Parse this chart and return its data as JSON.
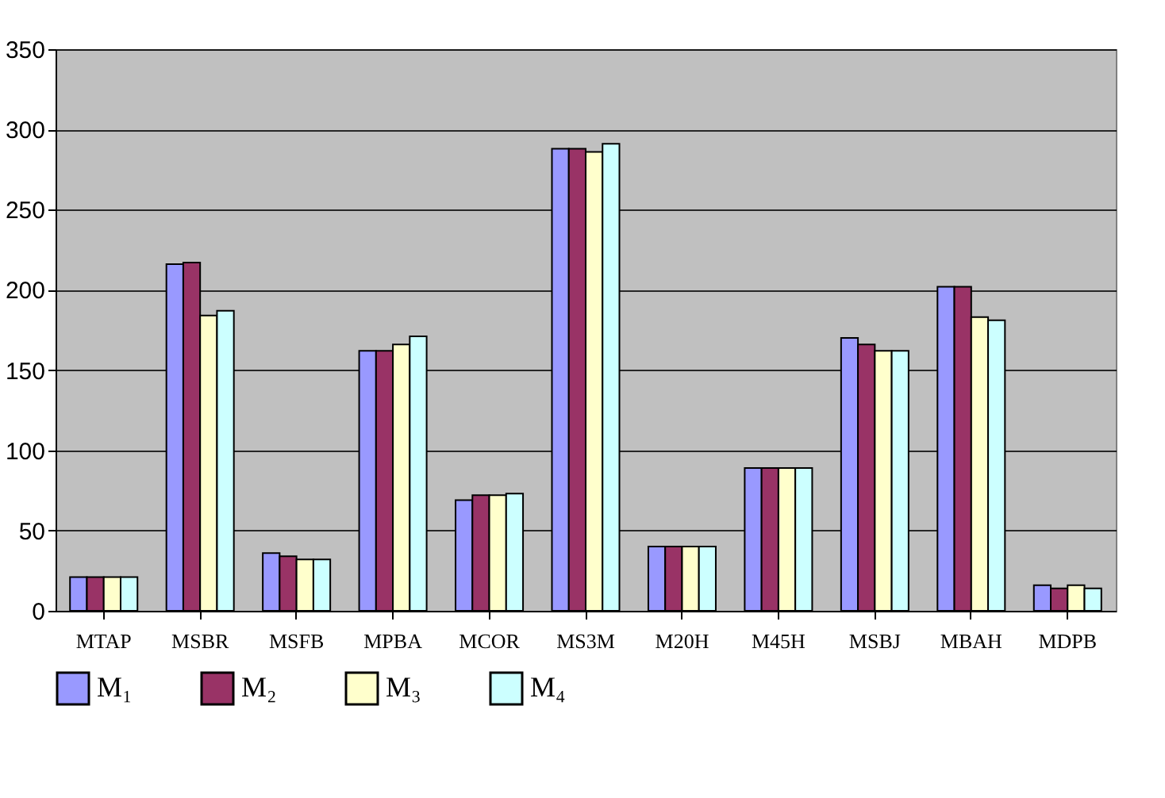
{
  "chart_data": {
    "type": "bar",
    "categories": [
      "MTAP",
      "MSBR",
      "MSFB",
      "MPBA",
      "MCOR",
      "MS3M",
      "M20H",
      "M45H",
      "MSBJ",
      "MBAH",
      "MDPB"
    ],
    "series": [
      {
        "name": "M₁",
        "color": "#9999ff",
        "values": [
          21,
          216,
          36,
          162,
          69,
          288,
          40,
          89,
          170,
          202,
          16
        ]
      },
      {
        "name": "M₂",
        "color": "#993366",
        "values": [
          21,
          217,
          34,
          162,
          72,
          288,
          40,
          89,
          166,
          202,
          14
        ]
      },
      {
        "name": "M₃",
        "color": "#ffffcc",
        "values": [
          21,
          184,
          32,
          166,
          72,
          286,
          40,
          89,
          162,
          183,
          16
        ]
      },
      {
        "name": "M₄",
        "color": "#ccffff",
        "values": [
          21,
          187,
          32,
          171,
          73,
          291,
          40,
          89,
          162,
          181,
          14
        ]
      }
    ],
    "ylim": [
      0,
      350
    ],
    "yticks": [
      0,
      50,
      100,
      150,
      200,
      250,
      300,
      350
    ],
    "grid": "y",
    "legend": "bottom"
  }
}
